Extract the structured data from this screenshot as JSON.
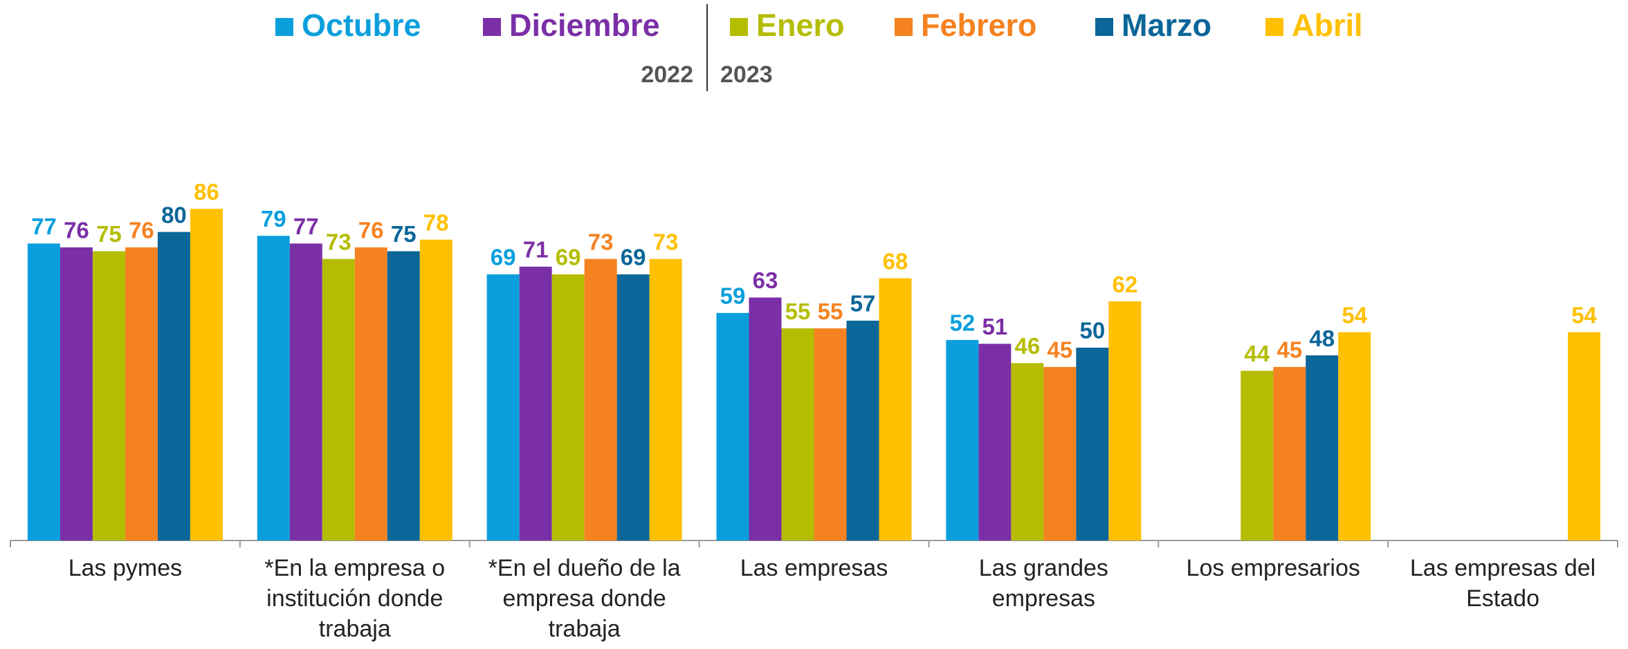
{
  "chart_data": {
    "type": "bar",
    "categories": [
      "Las pymes",
      "*En la empresa o institución donde trabaja",
      "*En el dueño de la empresa donde trabaja",
      "Las empresas",
      "Las grandes empresas",
      "Los empresarios",
      "Las empresas del Estado"
    ],
    "series": [
      {
        "name": "Octubre",
        "color": "#0a9fdc",
        "values": [
          77,
          79,
          69,
          59,
          52,
          null,
          null
        ]
      },
      {
        "name": "Diciembre",
        "color": "#7b2fa6",
        "values": [
          76,
          77,
          71,
          63,
          51,
          null,
          null
        ]
      },
      {
        "name": "Enero",
        "color": "#b4bd00",
        "values": [
          75,
          73,
          69,
          55,
          46,
          44,
          null
        ]
      },
      {
        "name": "Febrero",
        "color": "#f58220",
        "values": [
          76,
          76,
          73,
          55,
          45,
          45,
          null
        ]
      },
      {
        "name": "Marzo",
        "color": "#0b6699",
        "values": [
          80,
          75,
          69,
          57,
          50,
          48,
          null
        ]
      },
      {
        "name": "Abril",
        "color": "#ffc000",
        "values": [
          86,
          78,
          73,
          68,
          62,
          54,
          54
        ]
      }
    ],
    "annotations": [
      "2022",
      "2023"
    ],
    "ylim": [
      0,
      100
    ]
  }
}
